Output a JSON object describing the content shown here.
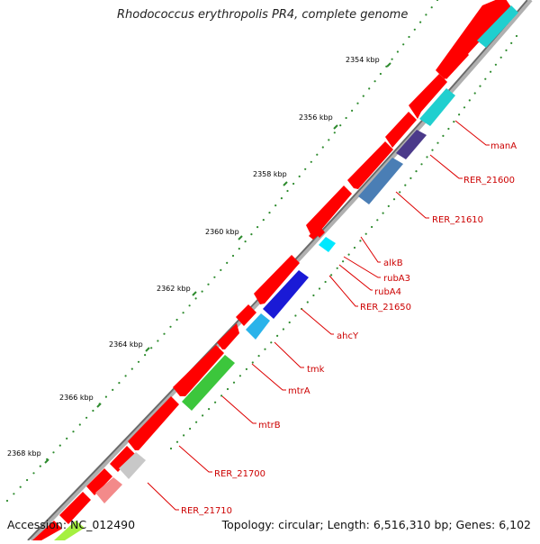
{
  "title": "Rhodococcus erythropolis PR4, complete genome",
  "footer": {
    "accession": "Accession: NC_012490",
    "summary": "Topology: circular; Length: 6,516,310 bp; Genes: 6,102"
  },
  "ticks": [
    {
      "label": "2354 kbp"
    },
    {
      "label": "2356 kbp"
    },
    {
      "label": "2358 kbp"
    },
    {
      "label": "2360 kbp"
    },
    {
      "label": "2362 kbp"
    },
    {
      "label": "2364 kbp"
    },
    {
      "label": "2366 kbp"
    },
    {
      "label": "2368 kbp"
    }
  ],
  "gene_labels": [
    {
      "name": "manA"
    },
    {
      "name": "RER_21600"
    },
    {
      "name": "RER_21610"
    },
    {
      "name": "alkB"
    },
    {
      "name": "rubA3"
    },
    {
      "name": "rubA4"
    },
    {
      "name": "RER_21650"
    },
    {
      "name": "ahcY"
    },
    {
      "name": "tmk"
    },
    {
      "name": "mtrA"
    },
    {
      "name": "mtrB"
    },
    {
      "name": "RER_21700"
    },
    {
      "name": "RER_21710"
    }
  ],
  "colors": {
    "backbone": "#8c8c8c",
    "gene_default": "#ff0000",
    "label_text": "#cc0000",
    "tick_mark": "#2e8b2e"
  }
}
